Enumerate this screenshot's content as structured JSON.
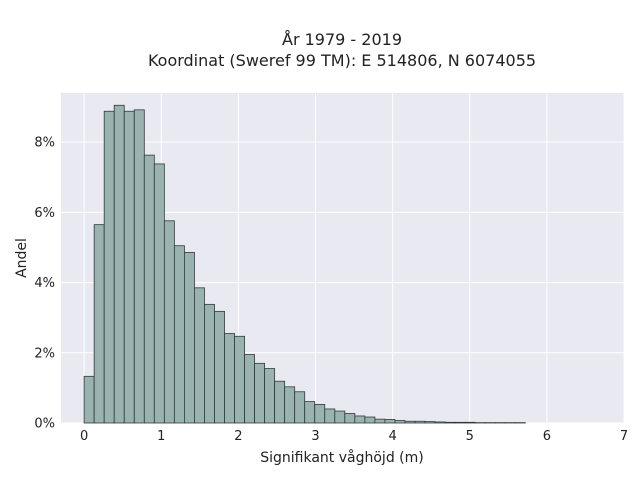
{
  "chart_data": {
    "type": "bar",
    "title": "År 1979 - 2019",
    "subtitle": "Koordinat (Sweref 99 TM): E 514806, N 6074055",
    "xlabel": "Signifikant våghöjd (m)",
    "ylabel": "Andel",
    "xlim": [
      -0.3,
      7.0
    ],
    "ylim": [
      0,
      9.4
    ],
    "xticks": [
      0,
      1,
      2,
      3,
      4,
      5,
      6,
      7
    ],
    "xtick_labels": [
      "0",
      "1",
      "2",
      "3",
      "4",
      "5",
      "6",
      "7"
    ],
    "yticks": [
      0,
      2,
      4,
      6,
      8
    ],
    "ytick_labels": [
      "0%",
      "2%",
      "4%",
      "6%",
      "8%"
    ],
    "bin_width": 0.13,
    "bin_start": 0.0,
    "values": [
      1.33,
      5.65,
      8.88,
      9.05,
      8.88,
      8.92,
      7.63,
      7.38,
      5.76,
      5.05,
      4.86,
      3.85,
      3.38,
      3.18,
      2.55,
      2.47,
      1.95,
      1.7,
      1.55,
      1.19,
      1.03,
      0.89,
      0.61,
      0.53,
      0.4,
      0.34,
      0.27,
      0.2,
      0.17,
      0.11,
      0.1,
      0.07,
      0.05,
      0.05,
      0.04,
      0.03,
      0.02,
      0.02,
      0.02,
      0.01,
      0.01,
      0.01,
      0.01,
      0.01,
      0.0
    ],
    "grid": true,
    "legend": "none",
    "colors": {
      "bar_fill": "#9bb3b0",
      "bar_edge": "#2f3a38",
      "plot_bg": "#e9e9f1",
      "grid": "#ffffff"
    }
  }
}
